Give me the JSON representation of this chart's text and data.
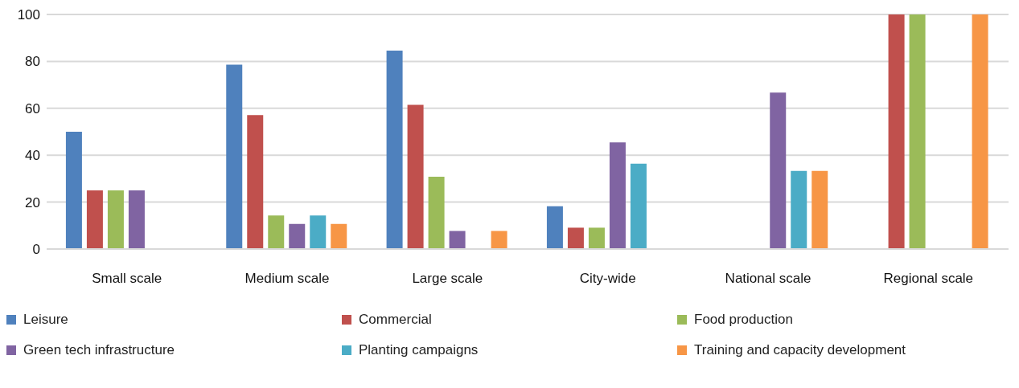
{
  "chart_data": {
    "type": "bar",
    "categories": [
      "Small scale",
      "Medium scale",
      "Large scale",
      "City-wide",
      "National scale",
      "Regional scale"
    ],
    "series": [
      {
        "name": "Leisure",
        "color": "#4f81bd",
        "values": [
          50,
          78.6,
          84.6,
          18.2,
          0,
          0
        ]
      },
      {
        "name": "Commercial",
        "color": "#c0504d",
        "values": [
          25,
          57.1,
          61.5,
          9.1,
          0,
          100
        ]
      },
      {
        "name": "Food production",
        "color": "#9bbb59",
        "values": [
          25,
          14.3,
          30.8,
          9.1,
          0,
          100
        ]
      },
      {
        "name": "Green tech infrastructure",
        "color": "#8064a2",
        "values": [
          25,
          10.7,
          7.7,
          45.5,
          66.7,
          0
        ]
      },
      {
        "name": "Planting campaigns",
        "color": "#4bacc6",
        "values": [
          0,
          14.3,
          0,
          36.4,
          33.3,
          0
        ]
      },
      {
        "name": "Training and capacity development",
        "color": "#f79646",
        "values": [
          0,
          10.7,
          7.7,
          0,
          33.3,
          100
        ]
      }
    ],
    "ylim": [
      0,
      100
    ],
    "yticks": [
      0,
      20,
      40,
      60,
      80,
      100
    ],
    "grid": "y",
    "legend": "bottom"
  }
}
